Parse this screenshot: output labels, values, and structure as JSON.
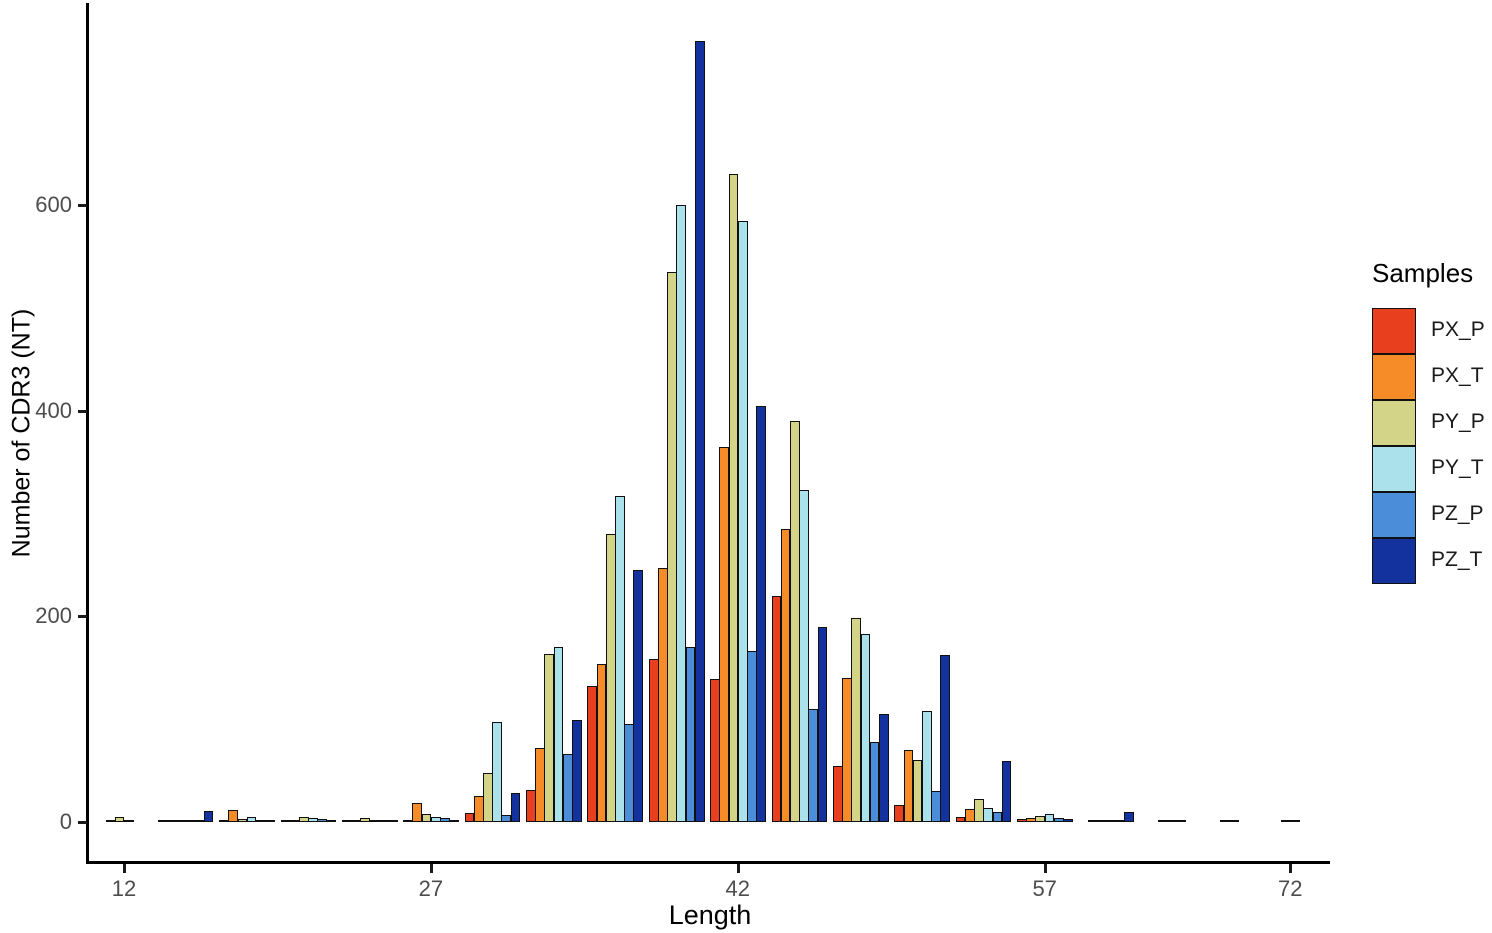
{
  "chart_data": {
    "type": "bar",
    "title": "",
    "xlabel": "Length",
    "ylabel": "Number of CDR3 (NT)",
    "legend_title": "Samples",
    "legend_position": "right",
    "grid": false,
    "x_tick_labels": [
      "12",
      "27",
      "42",
      "57",
      "72"
    ],
    "y_ticks": [
      0,
      200,
      400,
      600
    ],
    "ylim": [
      0,
      800
    ],
    "categories": [
      "12",
      "15",
      "18",
      "21",
      "24",
      "27",
      "30",
      "33",
      "36",
      "39",
      "42",
      "45",
      "48",
      "51",
      "54",
      "57",
      "60",
      "63",
      "66",
      "72"
    ],
    "series": [
      {
        "name": "PX_P",
        "color": "#e8401e",
        "values": [
          0,
          1,
          1,
          1,
          2,
          1,
          9,
          31,
          132,
          159,
          139,
          220,
          54,
          17,
          5,
          3,
          0,
          0,
          0,
          0
        ]
      },
      {
        "name": "PX_T",
        "color": "#f68c28",
        "values": [
          1,
          1,
          12,
          2,
          1,
          18,
          25,
          72,
          154,
          247,
          365,
          285,
          140,
          70,
          13,
          4,
          1,
          0,
          0,
          0
        ]
      },
      {
        "name": "PY_P",
        "color": "#d4d489",
        "values": [
          5,
          2,
          3,
          5,
          4,
          8,
          48,
          163,
          280,
          535,
          630,
          390,
          198,
          60,
          22,
          6,
          1,
          1,
          2,
          1
        ]
      },
      {
        "name": "PY_T",
        "color": "#abe1ea",
        "values": [
          1,
          1,
          5,
          4,
          2,
          5,
          97,
          170,
          317,
          600,
          585,
          323,
          183,
          108,
          14,
          8,
          1,
          1,
          2,
          1
        ]
      },
      {
        "name": "PZ_P",
        "color": "#4c8dd9",
        "values": [
          0,
          1,
          1,
          3,
          1,
          4,
          7,
          66,
          95,
          170,
          166,
          110,
          78,
          30,
          10,
          4,
          1,
          1,
          0,
          0
        ]
      },
      {
        "name": "PZ_T",
        "color": "#14329e",
        "values": [
          0,
          11,
          1,
          1,
          1,
          1,
          28,
          99,
          245,
          760,
          405,
          190,
          105,
          162,
          59,
          3,
          10,
          0,
          0,
          0
        ]
      }
    ],
    "axis_color": "#000000",
    "tick_label_color": "#4d4d4d"
  }
}
